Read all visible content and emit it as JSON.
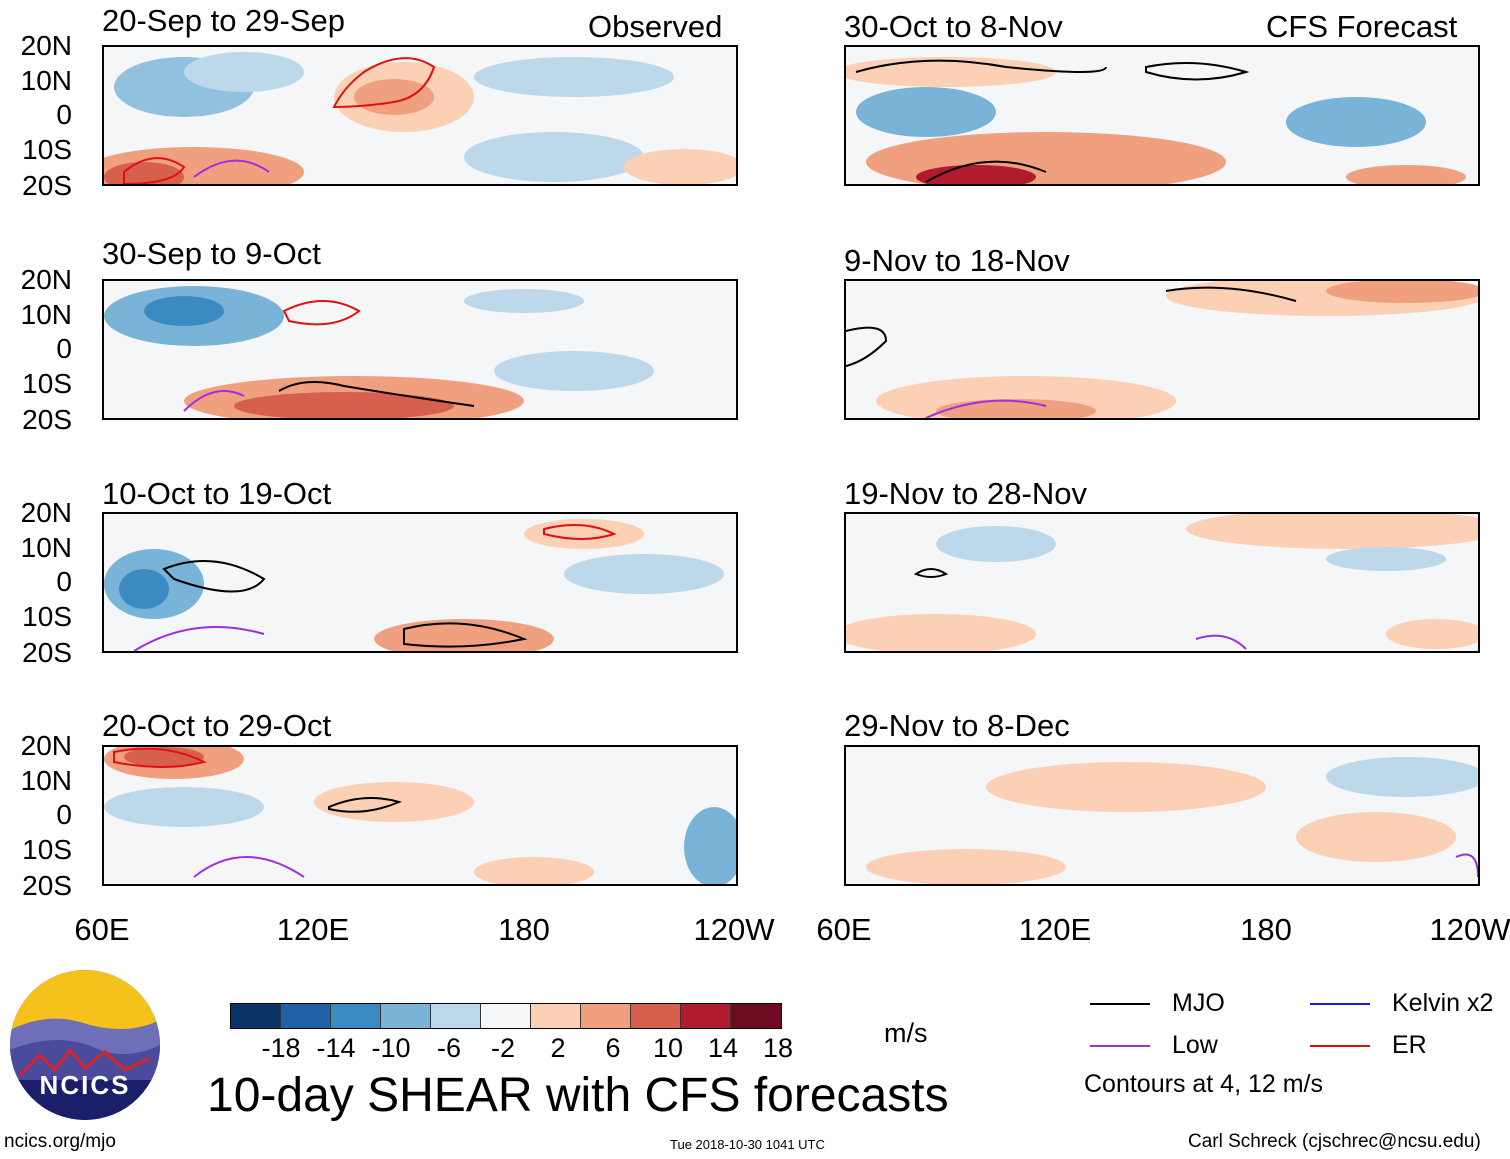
{
  "figure": {
    "title": "10-day SHEAR with CFS forecasts",
    "units": "m/s",
    "left_header": "Observed",
    "right_header": "CFS Forecast",
    "url": "ncics.org/mjo",
    "timestamp": "Tue 2018-10-30 1041 UTC",
    "author": "Carl Schreck (cjschrec@ncsu.edu)",
    "logo_text": "NCICS"
  },
  "axes": {
    "lat_labels": [
      "20N",
      "10N",
      "0",
      "10S",
      "20S"
    ],
    "lon_labels": [
      "60E",
      "120E",
      "180",
      "120W"
    ]
  },
  "panels": {
    "observed": [
      "20-Sep to 29-Sep",
      "30-Sep to 9-Oct",
      "10-Oct to 19-Oct",
      "20-Oct to 29-Oct"
    ],
    "forecast": [
      "30-Oct to 8-Nov",
      "9-Nov to 18-Nov",
      "19-Nov to 28-Nov",
      "29-Nov to 8-Dec"
    ]
  },
  "colorbar": {
    "ticks": [
      "-18",
      "-14",
      "-10",
      "-6",
      "-2",
      "2",
      "6",
      "10",
      "14",
      "18"
    ],
    "colors": [
      "#0b3566",
      "#1f62a8",
      "#3b8bc2",
      "#79b4d8",
      "#bcd8ea",
      "#f4f6f8",
      "#fbd0b5",
      "#f1a07f",
      "#d6604d",
      "#b01c2e",
      "#6d0a1f"
    ]
  },
  "legend": {
    "contour_note": "Contours at 4, 12 m/s",
    "items": [
      {
        "label": "MJO",
        "color": "#000000"
      },
      {
        "label": "Kelvin x2",
        "color": "#1a1adf"
      },
      {
        "label": "Low",
        "color": "#9b30e0"
      },
      {
        "label": "ER",
        "color": "#e01010"
      }
    ]
  }
}
